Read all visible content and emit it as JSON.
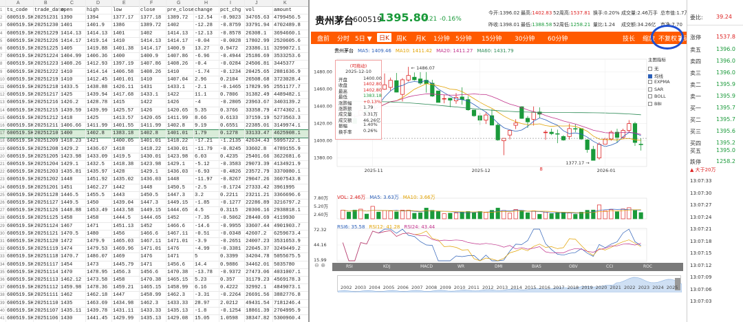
{
  "sheet": {
    "columns": [
      "A",
      "B",
      "C",
      "D",
      "E",
      "F",
      "G",
      "H",
      "I",
      "J",
      "K"
    ],
    "header": [
      "ts_code",
      "trade_date",
      "open",
      "high",
      "low",
      "close",
      "pre_close",
      "change",
      "pct_chg",
      "vol",
      "amount"
    ],
    "rows": [
      [
        "600519.SH",
        "20251231",
        "1390",
        "1394",
        "1377.17",
        "1377.18",
        "1389.72",
        "-12.54",
        "-0.9023",
        "34765.63",
        "4799456.5"
      ],
      [
        "600519.SH",
        "20251230",
        "1401",
        "1401.9",
        "1386",
        "1389.72",
        "1402",
        "-12.28",
        "-0.8759",
        "33791.94",
        "4702489.8"
      ],
      [
        "600519.SH",
        "20251229",
        "1414.13",
        "1414.13",
        "1401",
        "1402",
        "1414.13",
        "-12.13",
        "-0.8578",
        "26308.1",
        "3694660.1"
      ],
      [
        "600519.SH",
        "20251226",
        "1414.17",
        "1419.14",
        "1410",
        "1414.13",
        "1414.17",
        "-0.04",
        "-0.0028",
        "17802.99",
        "2520605.6"
      ],
      [
        "600519.SH",
        "20251225",
        "1405",
        "1419.88",
        "1401.38",
        "1414.17",
        "1400.9",
        "13.27",
        "0.9472",
        "23386.11",
        "3299072.1"
      ],
      [
        "600519.SH",
        "20251224",
        "1404.99",
        "1406.36",
        "1400",
        "1400.9",
        "1407.86",
        "-6.96",
        "-0.4944",
        "25186.69",
        "3533253.6"
      ],
      [
        "600519.SH",
        "20251223",
        "1408.26",
        "1412.93",
        "1397.19",
        "1407.86",
        "1408.26",
        "-0.4",
        "-0.0284",
        "24506.81",
        "3445377"
      ],
      [
        "600519.SH",
        "20251222",
        "1410",
        "1414.14",
        "1406.58",
        "1408.26",
        "1410",
        "-1.74",
        "-0.1234",
        "20425.65",
        "2881636.9"
      ],
      [
        "600519.SH",
        "20251219",
        "1410",
        "1412.45",
        "1401.01",
        "1410",
        "1407.04",
        "2.96",
        "0.2104",
        "26508.68",
        "3723028.4"
      ],
      [
        "600519.SH",
        "20251218",
        "1433.5",
        "1438.88",
        "1426.11",
        "1431",
        "1433.1",
        "-2.1",
        "-0.1465",
        "17829.95",
        "2551177.7"
      ],
      [
        "600519.SH",
        "20251217",
        "1425",
        "1439.94",
        "1417.68",
        "1433.1",
        "1422",
        "11.1",
        "0.7806",
        "31382.49",
        "4489482.1"
      ],
      [
        "600519.SH",
        "20251216",
        "1426.2",
        "1428.78",
        "1415",
        "1422",
        "1426",
        "-4",
        "-0.2805",
        "23963.67",
        "3403139.2"
      ],
      [
        "600519.SH",
        "20251215",
        "1439.59",
        "1439.99",
        "1425.57",
        "1426",
        "1420.65",
        "5.35",
        "0.3766",
        "33358.79",
        "4774302.1"
      ],
      [
        "600519.SH",
        "20251212",
        "1418",
        "1425",
        "1413.57",
        "1420.65",
        "1411.99",
        "8.66",
        "0.6133",
        "37159.19",
        "5273563.3"
      ],
      [
        "600519.SH",
        "20251211",
        "1406.66",
        "1411.99",
        "1401.55",
        "1411.99",
        "1402.8",
        "9.19",
        "0.6551",
        "22385.01",
        "3149974.1"
      ],
      [
        "600519.SH",
        "20251210",
        "1400",
        "1402.8",
        "1383.18",
        "1402.8",
        "1401.01",
        "1.79",
        "0.1278",
        "33133.47",
        "4625908.1"
      ],
      [
        "600519.SH",
        "20251209",
        "1418.23",
        "1421",
        "1400.05",
        "1401.01",
        "1418.22",
        "-17.21",
        "-1.2135",
        "42634.43",
        "5995722.1"
      ],
      [
        "600519.SH",
        "20251208",
        "1429.2",
        "1436.67",
        "1418",
        "1418.22",
        "1430.01",
        "-11.79",
        "-0.8245",
        "33602.8",
        "4789155.9"
      ],
      [
        "600519.SH",
        "20251205",
        "1423.98",
        "1433.09",
        "1419.5",
        "1430.01",
        "1423.98",
        "6.03",
        "0.4235",
        "25401.66",
        "3622681.6"
      ],
      [
        "600519.SH",
        "20251204",
        "1429.1",
        "1432.5",
        "1418.38",
        "1423.98",
        "1429.1",
        "-5.12",
        "-0.3583",
        "29073.39",
        "4134921.9"
      ],
      [
        "600519.SH",
        "20251203",
        "1435.81",
        "1435.97",
        "1428",
        "1429.1",
        "1436.03",
        "-6.93",
        "-0.4826",
        "23572.79",
        "3370080.1"
      ],
      [
        "600519.SH",
        "20251202",
        "1448",
        "1451.92",
        "1435.02",
        "1436.03",
        "1448",
        "-11.97",
        "-0.8267",
        "29047.26",
        "3607543.8"
      ],
      [
        "600519.SH",
        "20251201",
        "1451",
        "1462.27",
        "1442",
        "1448",
        "1450.5",
        "-2.5",
        "-0.1724",
        "27333.42",
        "3961995"
      ],
      [
        "600519.SH",
        "20251128",
        "1446.5",
        "1455.5",
        "1443",
        "1450.5",
        "1447.3",
        "3.2",
        "0.2211",
        "23211.21",
        "3366696.6"
      ],
      [
        "600519.SH",
        "20251127",
        "1449.5",
        "1450",
        "1439.04",
        "1447.3",
        "1449.15",
        "-1.85",
        "-0.1277",
        "22286.89",
        "3216797.2"
      ],
      [
        "600519.SH",
        "20251126",
        "1448.88",
        "1453.49",
        "1443.58",
        "1449.15",
        "1444.65",
        "4.5",
        "0.3115",
        "20306.16",
        "2938818.1"
      ],
      [
        "600519.SH",
        "20251125",
        "1458",
        "1458",
        "1444.5",
        "1444.65",
        "1452",
        "-7.35",
        "-0.5062",
        "28440.69",
        "4119930"
      ],
      [
        "600519.SH",
        "20251124",
        "1467",
        "1471",
        "1451.13",
        "1452",
        "1466.6",
        "-14.6",
        "-0.9955",
        "33607.44",
        "4901903.7"
      ],
      [
        "600519.SH",
        "20251121",
        "1470.5",
        "1480",
        "1456",
        "1466.6",
        "1467.11",
        "-0.51",
        "-0.0348",
        "42607.2",
        "6259673.4"
      ],
      [
        "600519.SH",
        "20251120",
        "1472",
        "1479.9",
        "1465.03",
        "1467.11",
        "1471.01",
        "-3.9",
        "-0.2651",
        "24007.23",
        "3531653.9"
      ],
      [
        "600519.SH",
        "20251119",
        "1474",
        "1479.53",
        "1469.96",
        "1471.01",
        "1476",
        "-4.99",
        "-0.3381",
        "22045.37",
        "3249449.2"
      ],
      [
        "600519.SH",
        "20251118",
        "1470.7",
        "1486.07",
        "1469",
        "1476",
        "1471",
        "5",
        "0.3399",
        "34204.78",
        "5055675.5"
      ],
      [
        "600519.SH",
        "20251117",
        "1454",
        "1473",
        "1445.79",
        "1471",
        "1456.6",
        "14.4",
        "0.9886",
        "34462.01",
        "5035780"
      ],
      [
        "600519.SH",
        "20251114",
        "1470",
        "1478.95",
        "1456.3",
        "1456.6",
        "1470.38",
        "-13.78",
        "-0.9372",
        "27473.06",
        "4031007.1"
      ],
      [
        "600519.SH",
        "20251113",
        "1462.12",
        "1473.58",
        "1458",
        "1470.38",
        "1465.15",
        "5.23",
        "0.357",
        "31179.23",
        "4569178.3"
      ],
      [
        "600519.SH",
        "20251112",
        "1459.98",
        "1478.36",
        "1459.21",
        "1465.15",
        "1458.99",
        "6.16",
        "0.4222",
        "32992.1",
        "4849073.1"
      ],
      [
        "600519.SH",
        "20251111",
        "1462",
        "1462.18",
        "1447",
        "1458.99",
        "1462.3",
        "-3.31",
        "-0.2264",
        "26691.56",
        "3882776.8"
      ],
      [
        "600519.SH",
        "20251110",
        "1435",
        "1463.69",
        "1434.98",
        "1462.3",
        "1433.33",
        "28.97",
        "2.0212",
        "49431.54",
        "7181246.4"
      ],
      [
        "600519.SH",
        "20251107",
        "1435.11",
        "1439.78",
        "1431.11",
        "1433.33",
        "1435.13",
        "-1.8",
        "-0.1254",
        "18861.39",
        "2704995.9"
      ],
      [
        "600519.SH",
        "20251106",
        "1430",
        "1441.45",
        "1429.99",
        "1435.13",
        "1429.08",
        "15.05",
        "1.0598",
        "38347.82",
        "5300960.4"
      ],
      [
        "600519.SH",
        "20251105",
        "1425.89",
        "1430.99",
        "1420.01",
        "1420.08",
        "1429",
        "-8.92",
        "-0.6242",
        "34475.27",
        "4934315.9"
      ],
      [
        "600519.SH",
        "20251104",
        "1435.1",
        "1435.78",
        "1423.78",
        "1429",
        "1435",
        "-6",
        "-0.4181",
        "26565.72",
        "3793892.9"
      ],
      [
        "600519.SH",
        "20251103",
        "1431",
        "1448",
        "1420.1",
        "1435",
        "1430.01",
        "4.99",
        "0.3489",
        "34547.66",
        "4945316.5"
      ]
    ]
  },
  "quote": {
    "name": "贵州茅台",
    "code": "600519",
    "price": "1395.80",
    "change": "-2.21",
    "pct": "-0.16%",
    "stats_row1": [
      {
        "label": "今开:",
        "value": "1396.02"
      },
      {
        "label": "最高:",
        "value": "1402.83"
      },
      {
        "label": "52周高:",
        "value": "1537.81"
      },
      {
        "label": "换手:",
        "value": "0.20%"
      },
      {
        "label": "成交量:",
        "value": "2.46万手"
      },
      {
        "label": "总市值:",
        "value": "1.7万亿"
      }
    ],
    "stats_row2": [
      {
        "label": "昨收:",
        "value": "1398.01"
      },
      {
        "label": "最低:",
        "value": "1388.58"
      },
      {
        "label": "52周低:",
        "value": "1258.21"
      },
      {
        "label": "量比:",
        "value": "1.24"
      },
      {
        "label": "成交额:",
        "value": "34.26亿"
      },
      {
        "label": "市净:",
        "value": "7.70"
      },
      {
        "label": "流通市值:",
        "value": "1.73亿"
      }
    ],
    "pe": {
      "label": "市盈:",
      "value": "20.28"
    }
  },
  "toolbar": {
    "left": [
      "盘前",
      "分时",
      "5日 ▼",
      "日K",
      "周K",
      "月K",
      "1分钟",
      "5分钟",
      "15分钟",
      "30分钟",
      "60分钟"
    ],
    "active": "日K",
    "right": [
      "技长",
      "缩放",
      "不复权 ▲",
      "筹码分布"
    ]
  },
  "chart_data": {
    "type": "candlestick",
    "ma_legend": [
      {
        "label": "MA5: 1409.46",
        "color": "#2b5fb8"
      },
      {
        "label": "MA10: 1411.42",
        "color": "#e2a200"
      },
      {
        "label": "MA20: 1411.27",
        "color": "#c0308a"
      },
      {
        "label": "MA60: 1431.79",
        "color": "#2e8b57"
      }
    ],
    "series_name": "贵州茅台",
    "y_ticks": [
      "1480.00",
      "1460.00",
      "1440.00",
      "1420.00",
      "1400.00",
      "1380.00"
    ],
    "ylim": [
      1370,
      1495
    ],
    "x_ticks": [
      "2025-11",
      "2025-12",
      "2026-01"
    ],
    "high_marker": "1486.07",
    "low_marker": "1377.17",
    "red_marker": "8",
    "closes": [
      1435,
      1429,
      1420.08,
      1435.13,
      1433.33,
      1462.3,
      1458.99,
      1465.15,
      1470.38,
      1456.6,
      1471,
      1476,
      1471.01,
      1467.11,
      1466.6,
      1452,
      1444.65,
      1449.15,
      1447.3,
      1450.5,
      1448,
      1436.03,
      1429.1,
      1423.98,
      1430.01,
      1418.22,
      1401.01,
      1402.8,
      1411.99,
      1420.65,
      1426,
      1422,
      1433.1,
      1431,
      1410,
      1408.26,
      1407.86,
      1400.9,
      1414.17,
      1414.13,
      1402,
      1389.72,
      1377.18,
      1395.8,
      1402,
      1410,
      1404,
      1412,
      1420,
      1398,
      1395.8
    ],
    "opens": [
      1431,
      1435.1,
      1425.89,
      1430,
      1435.11,
      1435,
      1462,
      1459.98,
      1462.12,
      1470,
      1454,
      1470.7,
      1474,
      1472,
      1470.5,
      1467,
      1458,
      1448.88,
      1449.5,
      1446.5,
      1451,
      1448,
      1435.81,
      1429.1,
      1423.98,
      1429.2,
      1418.23,
      1400,
      1406.66,
      1418,
      1439.59,
      1426.2,
      1425,
      1433.5,
      1410,
      1410,
      1408.26,
      1404.99,
      1405,
      1414.17,
      1414.13,
      1401,
      1390,
      1380,
      1396,
      1402,
      1410,
      1404,
      1412,
      1420,
      1396.02
    ],
    "highs": [
      1448,
      1435.78,
      1430.99,
      1441.45,
      1439.78,
      1463.69,
      1462.18,
      1478.36,
      1473.58,
      1478.95,
      1473,
      1486.07,
      1479.53,
      1479.9,
      1480,
      1471,
      1458,
      1453.49,
      1450,
      1455.5,
      1462.27,
      1451.92,
      1435.97,
      1432.5,
      1433.09,
      1436.67,
      1421,
      1402.8,
      1411.99,
      1425,
      1439.99,
      1428.78,
      1439.94,
      1438.88,
      1412.45,
      1414.14,
      1412.93,
      1406.36,
      1419.88,
      1419.14,
      1414.13,
      1401.9,
      1394,
      1398,
      1404,
      1412,
      1414,
      1414,
      1424,
      1422,
      1402.83
    ],
    "lows": [
      1420.1,
      1423.78,
      1420.01,
      1429.99,
      1431.11,
      1434.98,
      1447,
      1459.21,
      1458,
      1456.3,
      1445.79,
      1469,
      1469.96,
      1465.03,
      1456,
      1451.13,
      1444.5,
      1443.58,
      1439.04,
      1443,
      1442,
      1435.02,
      1428,
      1418.38,
      1419.5,
      1418,
      1400.05,
      1383.18,
      1401.55,
      1413.57,
      1425.57,
      1415,
      1417.68,
      1426.11,
      1401.01,
      1406.58,
      1397.19,
      1400,
      1401.38,
      1410,
      1401,
      1386,
      1377.17,
      1378,
      1394,
      1400,
      1398,
      1402,
      1410,
      1394,
      1388.58
    ],
    "vol_legend": [
      {
        "label": "VOL: 2.46万",
        "color": "#d22"
      },
      {
        "label": "MA5: 3.63万",
        "color": "#2b5fb8"
      },
      {
        "label": "MA10: 3.66万",
        "color": "#e2a200"
      }
    ],
    "vol_ticks": [
      "7.80万",
      "5.20万",
      "2.60万"
    ],
    "rsi_legend": [
      {
        "label": "RSI6: 35.58",
        "color": "#2b5fb8"
      },
      {
        "label": "RSI12: 41.28",
        "color": "#e2a200"
      },
      {
        "label": "RSI24: 43.44",
        "color": "#c0308a"
      }
    ],
    "rsi_ticks": [
      "72.32",
      "44.16",
      "15.99"
    ]
  },
  "tooltip": {
    "title": "(可拖动)",
    "date": "2025-12-10",
    "rows": [
      {
        "k": "开盘",
        "v": "1400.00"
      },
      {
        "k": "收盘",
        "v": "1402.80"
      },
      {
        "k": "最高",
        "v": "1402.80"
      },
      {
        "k": "最低",
        "v": "1383.18"
      },
      {
        "k": "涨跌幅",
        "v": "+0.13%"
      },
      {
        "k": "涨跌额",
        "v": "1.79"
      },
      {
        "k": "成交量",
        "v": "3.31万"
      },
      {
        "k": "成交额",
        "v": "46.26亿"
      },
      {
        "k": "振幅",
        "v": "1.40%"
      },
      {
        "k": "换手率",
        "v": "0.26%"
      }
    ]
  },
  "main_indicator": {
    "title": "主图指标",
    "items": [
      {
        "label": "无",
        "on": false
      },
      {
        "label": "均线",
        "on": true
      },
      {
        "label": "EXPMA",
        "on": false
      },
      {
        "label": "SAR",
        "on": false
      },
      {
        "label": "BOLL",
        "on": false
      },
      {
        "label": "BBI",
        "on": false
      }
    ]
  },
  "indicator_tabs": [
    "RSI",
    "KDJ",
    "MACD",
    "WR",
    "DMI",
    "BIAS",
    "OBV",
    "CCI",
    "ROC"
  ],
  "years": [
    "2002",
    "2003",
    "2004",
    "2005",
    "2006",
    "2007",
    "2008",
    "2009",
    "2010",
    "2011",
    "2012",
    "2013",
    "2014",
    "2015",
    "2016",
    "2017",
    "2018",
    "2019",
    "2020",
    "2021",
    "2022",
    "2023",
    "2024",
    "2025"
  ],
  "side": {
    "webi": {
      "label": "委比:",
      "value": "39.24"
    },
    "top": [
      {
        "label": "涨停",
        "value": "1537.8"
      },
      {
        "label": "卖五",
        "value": "1396.0"
      },
      {
        "label": "卖四",
        "value": "1396.0"
      },
      {
        "label": "卖三",
        "value": "1396.0"
      },
      {
        "label": "卖二",
        "value": "1395.9"
      },
      {
        "label": "卖一",
        "value": "1395.9"
      },
      {
        "label": "买一",
        "value": "1395.7"
      },
      {
        "label": "买二",
        "value": "1395.7"
      },
      {
        "label": "买三",
        "value": "1395.6"
      },
      {
        "label": "买四",
        "value": "1395.2"
      },
      {
        "label": "买五",
        "value": "1395.0"
      },
      {
        "label": "跌停",
        "value": "1258.2"
      }
    ],
    "big_order": "▲ 大于20万",
    "times": [
      "13:07:33",
      "13:07:30",
      "13:07:27",
      "13:07:24",
      "13:07:21",
      "13:07:18",
      "13:07:15",
      "13:07:12",
      "13:07:09",
      "13:07:06",
      "13:07:03"
    ]
  },
  "colors": {
    "up": "#d22",
    "down": "#1a9a3a",
    "toolbar": "#ff5a00",
    "annotation": "#1f4fd1"
  }
}
